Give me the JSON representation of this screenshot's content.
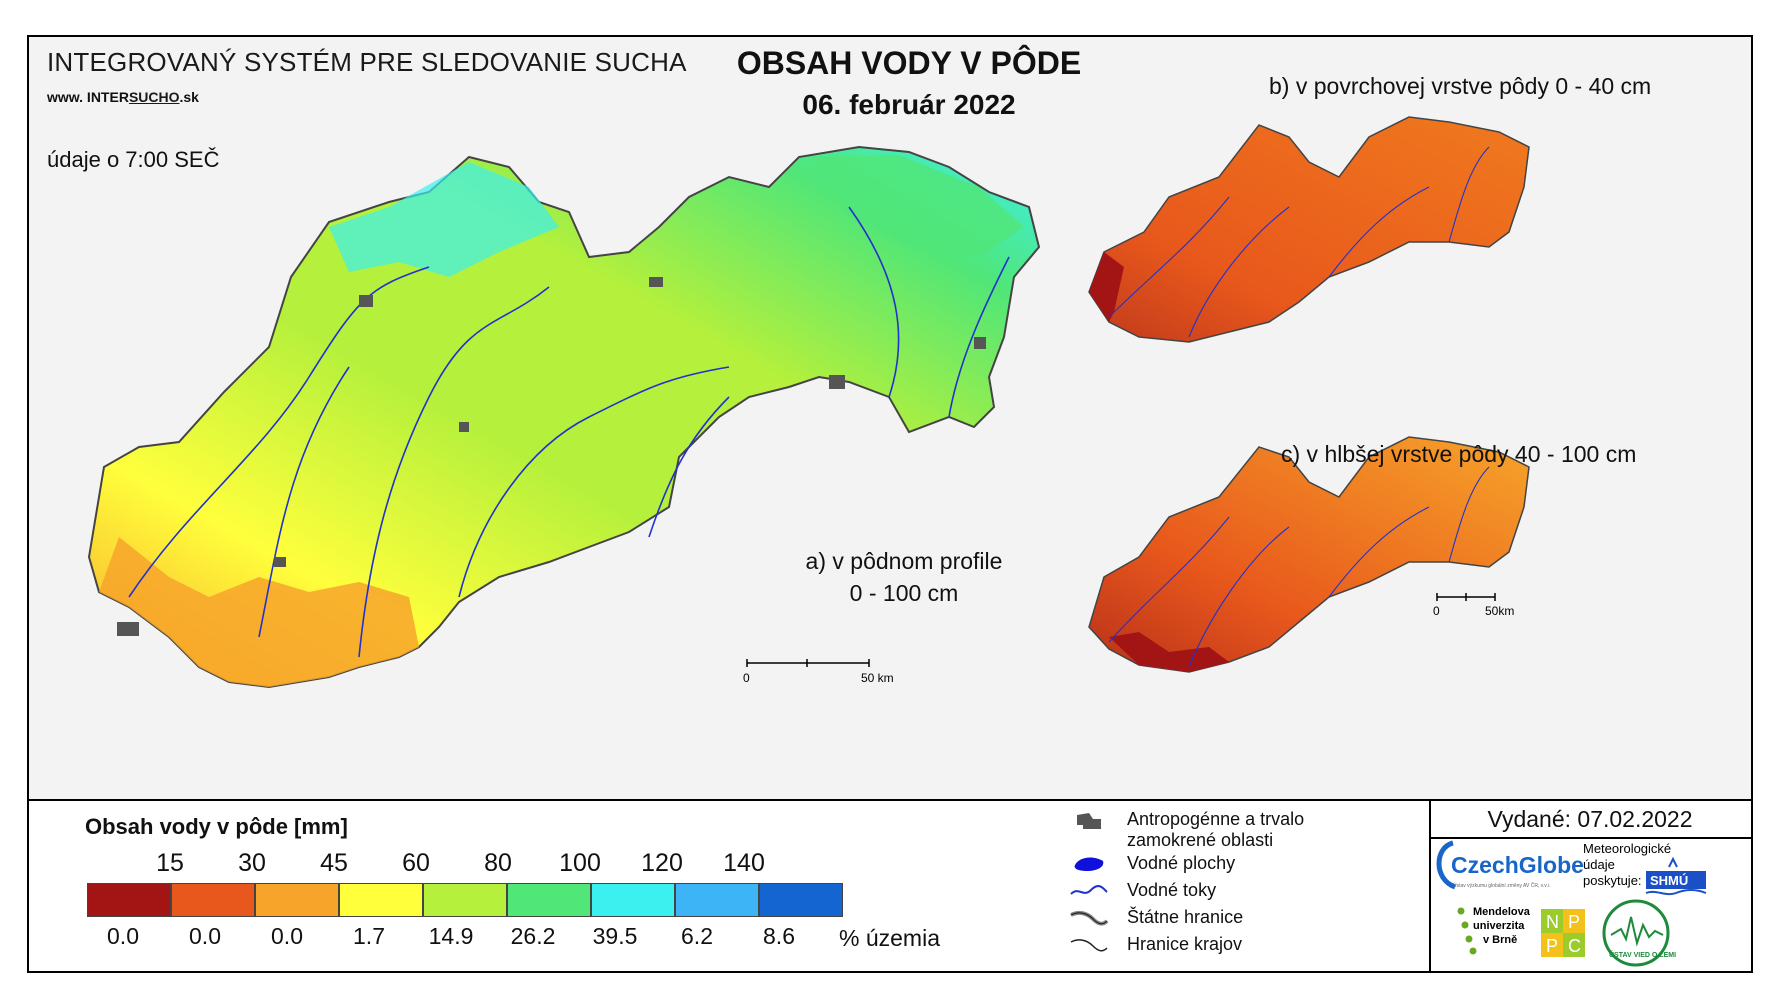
{
  "header": {
    "system_title": "INTEGROVANÝ SYSTÉM PRE SLEDOVANIE SUCHA",
    "website_prefix": "www. INTER",
    "website_bold": "SUCHO",
    "website_suffix": ".sk",
    "data_time": "údaje o 7:00 SEČ",
    "title": "OBSAH VODY V PÔDE",
    "date": "06. február 2022"
  },
  "maps": {
    "a": {
      "label_line1": "a) v pôdnom profile",
      "label_line2": "0 - 100 cm"
    },
    "b": {
      "label": "b) v povrchovej vrstve pôdy 0 - 40 cm"
    },
    "c": {
      "label": "c) v hlbšej vrstve pôdy 40 - 100 cm"
    },
    "scale_main": {
      "zero": "0",
      "end": "50 km"
    },
    "scale_small": {
      "zero": "0",
      "end": "50km"
    }
  },
  "legend": {
    "title": "Obsah vody v pôde  [mm]",
    "thresholds": [
      "15",
      "30",
      "45",
      "60",
      "80",
      "100",
      "120",
      "140"
    ],
    "classes": [
      {
        "color": "#a31515",
        "percent": "0.0"
      },
      {
        "color": "#e8581c",
        "percent": "0.0"
      },
      {
        "color": "#f7a52a",
        "percent": "0.0"
      },
      {
        "color": "#ffff3c",
        "percent": "1.7"
      },
      {
        "color": "#b4f03c",
        "percent": "14.9"
      },
      {
        "color": "#50e678",
        "percent": "26.2"
      },
      {
        "color": "#3cf0f0",
        "percent": "39.5"
      },
      {
        "color": "#3cb4f5",
        "percent": "6.2"
      },
      {
        "color": "#1464d2",
        "percent": "8.6"
      }
    ],
    "percent_unit": "% územia"
  },
  "symbols": {
    "anthropogenic_line1": "Antropogénne a trvalo",
    "anthropogenic_line2": "zamokrené oblasti",
    "water_bodies": "Vodné plochy",
    "streams": "Vodné toky",
    "state_border": "Štátne hranice",
    "region_border": "Hranice krajov"
  },
  "footer": {
    "issued": "Vydané: 07.02.2022",
    "czechglobe": "CzechGlobe",
    "czechglobe_sub": "Ústav výzkumu globální změny AV ČR, v.v.i.",
    "shmu_note_line1": "Meteorologické",
    "shmu_note_line2": "údaje",
    "shmu_note_line3": "poskytuje:",
    "shmu": "SHMÚ",
    "mendel_line1": "Mendelova",
    "mendel_line2": "univerzita",
    "mendel_line3": "v Brně",
    "nppc": [
      "N",
      "P",
      "P",
      "C"
    ],
    "uvz": "ÚSTAV VIED O ZEMI"
  }
}
